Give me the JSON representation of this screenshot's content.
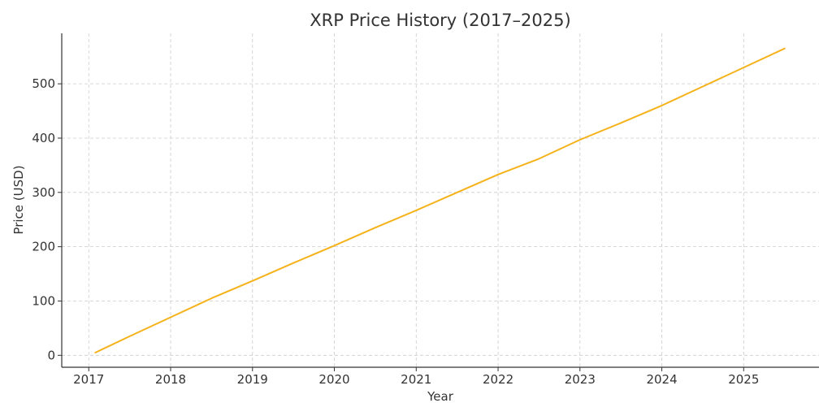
{
  "chart_data": {
    "type": "line",
    "title": "XRP Price History (2017–2025)",
    "xlabel": "Year",
    "ylabel": "Price (USD)",
    "xlim": [
      2016.67,
      2025.92
    ],
    "ylim": [
      -22,
      593
    ],
    "grid": true,
    "x_ticks": [
      2017,
      2018,
      2019,
      2020,
      2021,
      2022,
      2023,
      2024,
      2025
    ],
    "x_tick_labels": [
      "2017",
      "2018",
      "2019",
      "2020",
      "2021",
      "2022",
      "2023",
      "2024",
      "2025"
    ],
    "y_ticks": [
      0,
      100,
      200,
      300,
      400,
      500
    ],
    "y_tick_labels": [
      "0",
      "100",
      "200",
      "300",
      "400",
      "500"
    ],
    "series": [
      {
        "color": "#f5b21a",
        "x": [
          2017.08,
          2017.5,
          2018.0,
          2018.5,
          2019.0,
          2019.5,
          2020.0,
          2020.5,
          2021.0,
          2021.5,
          2022.0,
          2022.5,
          2023.0,
          2023.5,
          2024.0,
          2024.5,
          2025.0,
          2025.5
        ],
        "y": [
          5,
          35,
          70,
          105,
          137,
          170,
          202,
          235,
          267,
          300,
          333,
          362,
          397,
          428,
          460,
          495,
          530,
          565
        ]
      }
    ]
  }
}
